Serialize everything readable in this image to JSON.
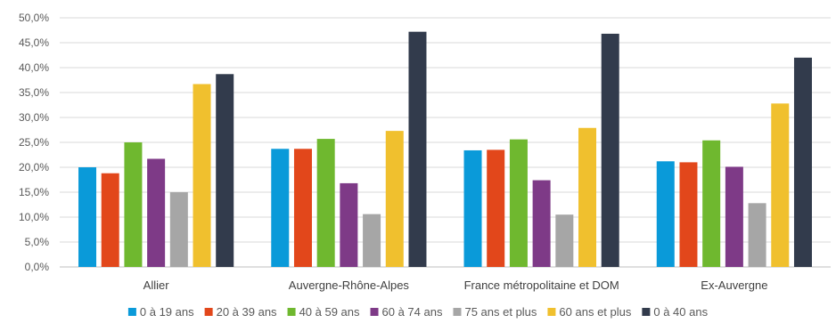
{
  "chart_data": {
    "type": "bar",
    "categories": [
      "Allier",
      "Auvergne-Rhône-Alpes",
      "France métropolitaine et DOM",
      "Ex-Auvergne"
    ],
    "series": [
      {
        "name": "0 à 19 ans",
        "color": "#0a9ad9",
        "values": [
          20.0,
          23.7,
          23.4,
          21.2
        ]
      },
      {
        "name": "20 à 39 ans",
        "color": "#e2471b",
        "values": [
          18.8,
          23.7,
          23.5,
          21.0
        ]
      },
      {
        "name": "40 à 59 ans",
        "color": "#6fb82f",
        "values": [
          25.0,
          25.7,
          25.6,
          25.4
        ]
      },
      {
        "name": "60 à 74 ans",
        "color": "#7e3a87",
        "values": [
          21.7,
          16.8,
          17.4,
          20.1
        ]
      },
      {
        "name": "75 ans et plus",
        "color": "#a6a6a6",
        "values": [
          15.0,
          10.6,
          10.5,
          12.8
        ]
      },
      {
        "name": "60 ans et plus",
        "color": "#f0c02e",
        "values": [
          36.7,
          27.3,
          27.9,
          32.8
        ]
      },
      {
        "name": "0 à 40 ans",
        "color": "#323b4c",
        "values": [
          38.7,
          47.2,
          46.8,
          42.0
        ]
      }
    ],
    "yticks": [
      "0,0%",
      "5,0%",
      "10,0%",
      "15,0%",
      "20,0%",
      "25,0%",
      "30,0%",
      "35,0%",
      "40,0%",
      "45,0%",
      "50,0%"
    ],
    "ylim": [
      0,
      50
    ],
    "grid": true,
    "legend_position": "bottom"
  }
}
